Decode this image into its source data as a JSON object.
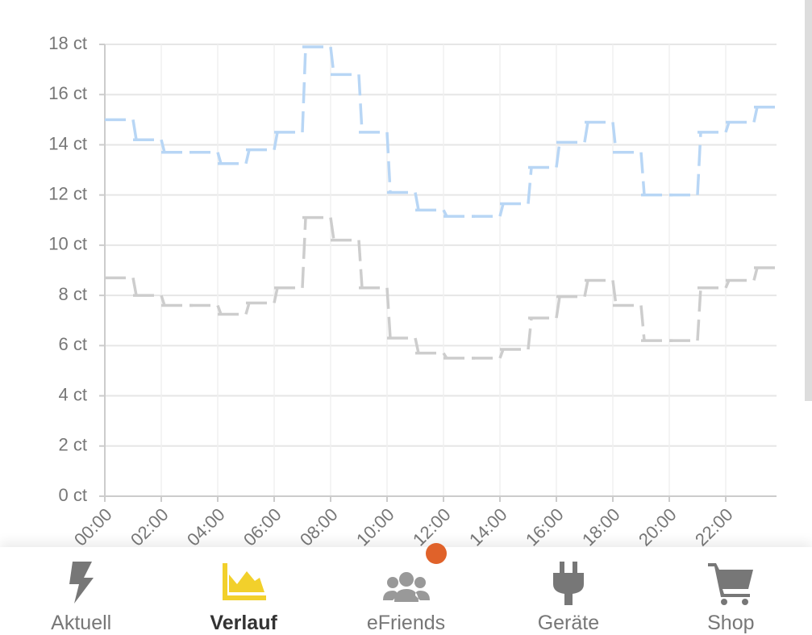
{
  "chart_data": {
    "type": "line",
    "step": true,
    "x": [
      0,
      1,
      2,
      3,
      4,
      5,
      6,
      7,
      8,
      9,
      10,
      11,
      12,
      13,
      14,
      15,
      16,
      17,
      18,
      19,
      20,
      21,
      22,
      23
    ],
    "series": [
      {
        "color": "#b8d6f5",
        "values": [
          15.0,
          14.2,
          13.7,
          13.7,
          13.25,
          13.8,
          14.5,
          17.9,
          16.8,
          14.5,
          12.1,
          11.4,
          11.15,
          11.15,
          11.65,
          13.1,
          14.1,
          14.9,
          13.7,
          12.0,
          12.0,
          14.5,
          14.9,
          15.5
        ]
      },
      {
        "color": "#cdcdcd",
        "values": [
          8.7,
          8.0,
          7.6,
          7.6,
          7.25,
          7.7,
          8.3,
          11.1,
          10.2,
          8.3,
          6.3,
          5.7,
          5.5,
          5.5,
          5.85,
          7.1,
          7.95,
          8.6,
          7.6,
          6.2,
          6.2,
          8.3,
          8.6,
          9.1
        ]
      }
    ],
    "xlim": [
      0,
      23.8
    ],
    "xticks": [
      {
        "value": 0,
        "label": "00:00"
      },
      {
        "value": 2,
        "label": "02:00"
      },
      {
        "value": 4,
        "label": "04:00"
      },
      {
        "value": 6,
        "label": "06:00"
      },
      {
        "value": 8,
        "label": "08:00"
      },
      {
        "value": 10,
        "label": "10:00"
      },
      {
        "value": 12,
        "label": "12:00"
      },
      {
        "value": 14,
        "label": "14:00"
      },
      {
        "value": 16,
        "label": "16:00"
      },
      {
        "value": 18,
        "label": "18:00"
      },
      {
        "value": 20,
        "label": "20:00"
      },
      {
        "value": 22,
        "label": "22:00"
      }
    ],
    "ylim": [
      0,
      18
    ],
    "yticks": [
      {
        "value": 0,
        "label": "0 ct"
      },
      {
        "value": 2,
        "label": "2 ct"
      },
      {
        "value": 4,
        "label": "4 ct"
      },
      {
        "value": 6,
        "label": "6 ct"
      },
      {
        "value": 8,
        "label": "8 ct"
      },
      {
        "value": 10,
        "label": "10 ct"
      },
      {
        "value": 12,
        "label": "12 ct"
      },
      {
        "value": 14,
        "label": "14 ct"
      },
      {
        "value": 16,
        "label": "16 ct"
      },
      {
        "value": 18,
        "label": "18 ct"
      }
    ],
    "grid": true
  },
  "nav": {
    "items": [
      {
        "label": "Aktuell"
      },
      {
        "label": "Verlauf"
      },
      {
        "label": "eFriends"
      },
      {
        "label": "Geräte"
      },
      {
        "label": "Shop"
      }
    ]
  }
}
